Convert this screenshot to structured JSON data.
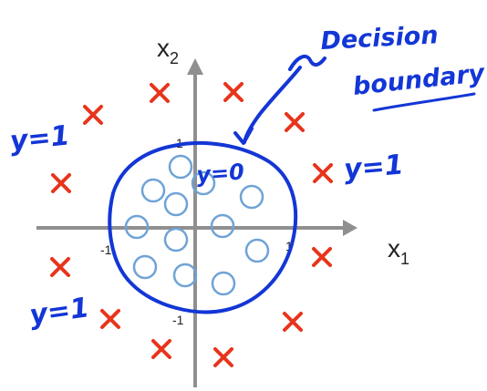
{
  "axes": {
    "x_label": "x",
    "x_subscript": "1",
    "y_label": "x",
    "y_subscript": "2",
    "ticks": [
      "1",
      "-1",
      "1",
      "-1"
    ]
  },
  "annotations": {
    "decision_line1": "Decision",
    "decision_line2": "boundary",
    "inside_label": "y=0",
    "outside_labels": [
      "y=1",
      "y=1",
      "y=1"
    ]
  },
  "colors": {
    "axis": "#8f8f8f",
    "circle_points": "#6fa3d6",
    "cross_points": "#e8341c",
    "ink": "#1336d6"
  }
}
